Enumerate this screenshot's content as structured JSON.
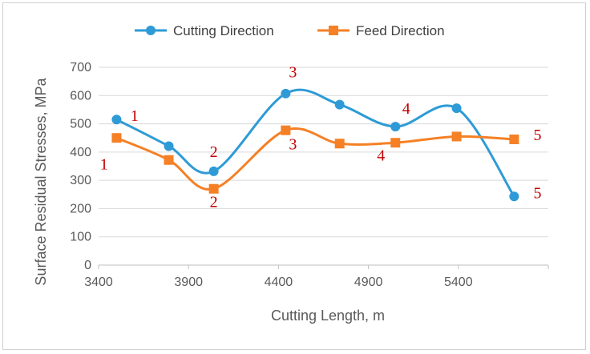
{
  "chart_data": {
    "type": "line",
    "xlabel": "Cutting Length, m",
    "ylabel": "Surface Residual Stresses, MPa",
    "xlim": [
      3400,
      5900
    ],
    "ylim": [
      0,
      700
    ],
    "x_ticks": [
      "3400",
      "3900",
      "4400",
      "4900",
      "5400"
    ],
    "y_ticks": [
      "0",
      "100",
      "200",
      "300",
      "400",
      "500",
      "600",
      "700"
    ],
    "grid": true,
    "legend_position": "top",
    "smooth": true,
    "series": [
      {
        "name": "Cutting Direction",
        "color": "#2e9bd6",
        "marker": "circle",
        "x": [
          3500,
          3790,
          4040,
          4440,
          4740,
          5050,
          5390,
          5710
        ],
        "y": [
          515,
          421,
          332,
          607,
          568,
          490,
          555,
          243
        ]
      },
      {
        "name": "Feed Direction",
        "color": "#f58025",
        "marker": "square",
        "x": [
          3500,
          3790,
          4040,
          4440,
          4740,
          5050,
          5390,
          5710
        ],
        "y": [
          450,
          372,
          270,
          477,
          430,
          433,
          455,
          445
        ]
      }
    ],
    "annotations": [
      {
        "text": "1",
        "x": 3600,
        "y": 510
      },
      {
        "text": "2",
        "x": 4040,
        "y": 383
      },
      {
        "text": "3",
        "x": 4480,
        "y": 665
      },
      {
        "text": "4",
        "x": 5110,
        "y": 535
      },
      {
        "text": "5",
        "x": 5840,
        "y": 237
      },
      {
        "text": "1",
        "x": 3430,
        "y": 338
      },
      {
        "text": "2",
        "x": 4040,
        "y": 205
      },
      {
        "text": "3",
        "x": 4480,
        "y": 410
      },
      {
        "text": "4",
        "x": 4970,
        "y": 370
      },
      {
        "text": "5",
        "x": 5840,
        "y": 442
      }
    ]
  }
}
